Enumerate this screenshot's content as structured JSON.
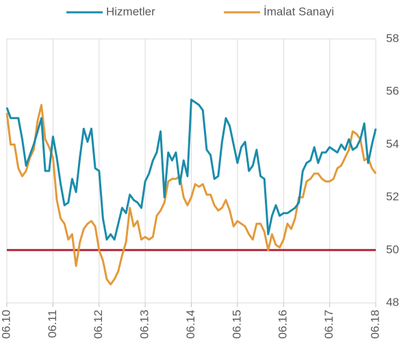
{
  "chart_data": {
    "type": "line",
    "categories": [
      "06.10",
      null,
      null,
      null,
      null,
      null,
      null,
      null,
      null,
      null,
      null,
      null,
      "06.11",
      null,
      null,
      null,
      null,
      null,
      null,
      null,
      null,
      null,
      null,
      null,
      "06.12",
      null,
      null,
      null,
      null,
      null,
      null,
      null,
      null,
      null,
      null,
      null,
      "06.13",
      null,
      null,
      null,
      null,
      null,
      null,
      null,
      null,
      null,
      null,
      null,
      "06.14",
      null,
      null,
      null,
      null,
      null,
      null,
      null,
      null,
      null,
      null,
      null,
      "06.15",
      null,
      null,
      null,
      null,
      null,
      null,
      null,
      null,
      null,
      null,
      null,
      "06.16",
      null,
      null,
      null,
      null,
      null,
      null,
      null,
      null,
      null,
      null,
      null,
      "06.17",
      null,
      null,
      null,
      null,
      null,
      null,
      null,
      null,
      null,
      null,
      null,
      "06.18"
    ],
    "series": [
      {
        "name": "Hizmetler",
        "color": "#1a8cab",
        "values": [
          55.4,
          55.0,
          55.0,
          55.0,
          54.2,
          53.2,
          53.6,
          54.0,
          54.5,
          55.0,
          53.0,
          53.0,
          54.3,
          53.5,
          52.5,
          51.7,
          51.8,
          52.7,
          52.2,
          53.5,
          54.6,
          54.1,
          54.6,
          53.1,
          53.0,
          51.2,
          50.4,
          50.6,
          50.4,
          51.0,
          51.6,
          51.4,
          52.1,
          51.9,
          51.8,
          51.6,
          52.6,
          52.9,
          53.4,
          53.7,
          54.5,
          52.0,
          53.7,
          53.4,
          53.7,
          52.5,
          53.4,
          52.8,
          55.7,
          55.6,
          55.5,
          55.3,
          53.8,
          53.6,
          52.7,
          52.8,
          54.1,
          55.0,
          54.7,
          54.0,
          53.3,
          53.9,
          54.1,
          53.0,
          53.2,
          53.8,
          52.8,
          52.7,
          50.6,
          51.3,
          51.7,
          51.3,
          51.4,
          51.4,
          51.5,
          51.6,
          51.8,
          53.0,
          53.3,
          53.4,
          53.9,
          53.3,
          53.7,
          53.7,
          53.9,
          53.8,
          53.7,
          54.0,
          53.8,
          54.2,
          53.8,
          53.9,
          54.2,
          54.8,
          53.3,
          54.0,
          54.6
        ]
      },
      {
        "name": "İmalat Sanayi",
        "color": "#e39a3b",
        "values": [
          55.2,
          54.0,
          54.0,
          53.1,
          52.8,
          53.0,
          53.5,
          53.8,
          54.9,
          55.5,
          54.2,
          53.9,
          53.5,
          51.9,
          51.2,
          51.0,
          50.4,
          50.6,
          49.4,
          50.3,
          50.8,
          51.0,
          51.1,
          50.9,
          50.0,
          49.6,
          48.9,
          48.7,
          48.9,
          49.2,
          49.8,
          50.3,
          51.6,
          50.9,
          51.1,
          50.4,
          50.5,
          50.4,
          50.5,
          51.3,
          51.5,
          51.8,
          52.6,
          52.7,
          52.7,
          52.8,
          52.0,
          51.7,
          52.0,
          52.5,
          52.4,
          52.5,
          52.1,
          52.1,
          51.7,
          51.5,
          51.6,
          51.9,
          51.5,
          50.9,
          51.1,
          51.0,
          50.9,
          50.6,
          50.4,
          51.0,
          51.0,
          50.7,
          50.0,
          50.6,
          50.2,
          50.1,
          50.4,
          51.0,
          50.8,
          51.2,
          52.0,
          52.0,
          52.6,
          52.7,
          52.9,
          52.9,
          52.7,
          52.6,
          52.6,
          52.7,
          53.1,
          53.2,
          53.5,
          53.8,
          54.5,
          54.4,
          54.2,
          53.4,
          53.5,
          53.1,
          52.9
        ]
      }
    ],
    "reference_line": {
      "value": 50,
      "color": "#b0263a"
    },
    "ylim": [
      48,
      58
    ],
    "yticks": [
      48,
      50,
      52,
      54,
      56,
      58
    ],
    "y_axis_side": "right",
    "grid": true,
    "legend": "top"
  }
}
